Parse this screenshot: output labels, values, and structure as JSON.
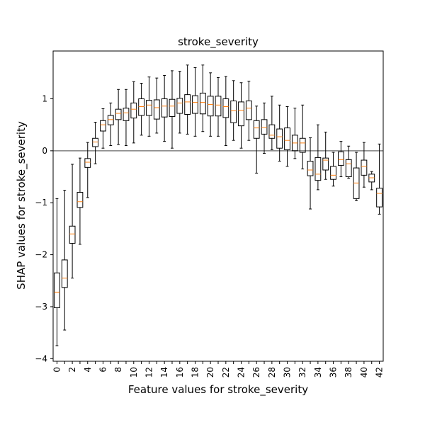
{
  "chart_data": {
    "type": "box",
    "title": "stroke_severity",
    "xlabel": "Feature values for stroke_severity",
    "ylabel": "SHAP values for stroke_severity",
    "ylim": [
      -4.05,
      1.92
    ],
    "yticks": [
      -4,
      -3,
      -2,
      -1,
      0,
      1
    ],
    "ytick_labels": [
      "−4",
      "−3",
      "−2",
      "−1",
      "0",
      "1"
    ],
    "xticks": [
      0,
      2,
      4,
      6,
      8,
      10,
      12,
      14,
      16,
      18,
      20,
      22,
      24,
      26,
      28,
      30,
      32,
      34,
      36,
      38,
      40,
      42
    ],
    "xtick_labels": [
      "0",
      "2",
      "4",
      "6",
      "8",
      "10",
      "12",
      "14",
      "16",
      "18",
      "20",
      "22",
      "24",
      "26",
      "28",
      "30",
      "32",
      "34",
      "36",
      "38",
      "40",
      "42"
    ],
    "reference_line_y": 0,
    "colors": {
      "box": "#000000",
      "median": "#ff7f0e",
      "reference_line": "#808080"
    },
    "series": [
      {
        "x": 0,
        "whisker_low": -3.75,
        "q1": -3.02,
        "median": -2.72,
        "q3": -2.35,
        "whisker_high": -0.92
      },
      {
        "x": 1,
        "whisker_low": -3.45,
        "q1": -2.63,
        "median": -2.45,
        "q3": -2.1,
        "whisker_high": -0.76
      },
      {
        "x": 2,
        "whisker_low": -2.45,
        "q1": -1.78,
        "median": -1.6,
        "q3": -1.45,
        "whisker_high": -0.26
      },
      {
        "x": 3,
        "whisker_low": -1.8,
        "q1": -1.09,
        "median": -0.98,
        "q3": -0.8,
        "whisker_high": -0.14
      },
      {
        "x": 4,
        "whisker_low": -0.9,
        "q1": -0.32,
        "median": -0.22,
        "q3": -0.15,
        "whisker_high": 0.16
      },
      {
        "x": 5,
        "whisker_low": -0.25,
        "q1": 0.08,
        "median": 0.17,
        "q3": 0.24,
        "whisker_high": 0.55
      },
      {
        "x": 6,
        "whisker_low": 0.05,
        "q1": 0.38,
        "median": 0.5,
        "q3": 0.58,
        "whisker_high": 0.81
      },
      {
        "x": 7,
        "whisker_low": 0.1,
        "q1": 0.5,
        "median": 0.6,
        "q3": 0.68,
        "whisker_high": 0.92
      },
      {
        "x": 8,
        "whisker_low": 0.12,
        "q1": 0.6,
        "median": 0.72,
        "q3": 0.8,
        "whisker_high": 1.18
      },
      {
        "x": 9,
        "whisker_low": 0.1,
        "q1": 0.58,
        "median": 0.73,
        "q3": 0.82,
        "whisker_high": 1.18
      },
      {
        "x": 10,
        "whisker_low": 0.15,
        "q1": 0.63,
        "median": 0.8,
        "q3": 0.92,
        "whisker_high": 1.33
      },
      {
        "x": 11,
        "whisker_low": 0.3,
        "q1": 0.68,
        "median": 0.85,
        "q3": 1.0,
        "whisker_high": 1.3
      },
      {
        "x": 12,
        "whisker_low": 0.28,
        "q1": 0.68,
        "median": 0.88,
        "q3": 0.97,
        "whisker_high": 1.42
      },
      {
        "x": 13,
        "whisker_low": 0.34,
        "q1": 0.61,
        "median": 0.83,
        "q3": 0.98,
        "whisker_high": 1.4
      },
      {
        "x": 14,
        "whisker_low": 0.18,
        "q1": 0.65,
        "median": 0.86,
        "q3": 1.0,
        "whisker_high": 1.45
      },
      {
        "x": 15,
        "whisker_low": 0.05,
        "q1": 0.66,
        "median": 0.86,
        "q3": 0.99,
        "whisker_high": 1.54
      },
      {
        "x": 16,
        "whisker_low": 0.34,
        "q1": 0.72,
        "median": 0.92,
        "q3": 1.01,
        "whisker_high": 1.53
      },
      {
        "x": 17,
        "whisker_low": 0.32,
        "q1": 0.7,
        "median": 0.94,
        "q3": 1.08,
        "whisker_high": 1.65
      },
      {
        "x": 18,
        "whisker_low": 0.28,
        "q1": 0.72,
        "median": 0.93,
        "q3": 1.06,
        "whisker_high": 1.6
      },
      {
        "x": 19,
        "whisker_low": 0.37,
        "q1": 0.71,
        "median": 0.93,
        "q3": 1.11,
        "whisker_high": 1.65
      },
      {
        "x": 20,
        "whisker_low": 0.28,
        "q1": 0.67,
        "median": 0.89,
        "q3": 1.05,
        "whisker_high": 1.5
      },
      {
        "x": 21,
        "whisker_low": 0.28,
        "q1": 0.67,
        "median": 0.88,
        "q3": 1.05,
        "whisker_high": 1.41
      },
      {
        "x": 22,
        "whisker_low": 0.1,
        "q1": 0.64,
        "median": 0.85,
        "q3": 1.0,
        "whisker_high": 1.43
      },
      {
        "x": 23,
        "whisker_low": 0.2,
        "q1": 0.54,
        "median": 0.77,
        "q3": 0.96,
        "whisker_high": 1.35
      },
      {
        "x": 24,
        "whisker_low": 0.05,
        "q1": 0.48,
        "median": 0.78,
        "q3": 0.94,
        "whisker_high": 1.31
      },
      {
        "x": 25,
        "whisker_low": 0.2,
        "q1": 0.6,
        "median": 0.82,
        "q3": 0.96,
        "whisker_high": 1.34
      },
      {
        "x": 26,
        "whisker_low": -0.43,
        "q1": 0.24,
        "median": 0.44,
        "q3": 0.58,
        "whisker_high": 0.86
      },
      {
        "x": 27,
        "whisker_low": -0.05,
        "q1": 0.32,
        "median": 0.45,
        "q3": 0.6,
        "whisker_high": 0.92
      },
      {
        "x": 28,
        "whisker_low": 0.02,
        "q1": 0.24,
        "median": 0.3,
        "q3": 0.5,
        "whisker_high": 1.05
      },
      {
        "x": 29,
        "whisker_low": -0.2,
        "q1": 0.05,
        "median": 0.27,
        "q3": 0.42,
        "whisker_high": 0.88
      },
      {
        "x": 30,
        "whisker_low": -0.3,
        "q1": 0.02,
        "median": 0.2,
        "q3": 0.44,
        "whisker_high": 0.85
      },
      {
        "x": 31,
        "whisker_low": -0.15,
        "q1": 0.0,
        "median": 0.15,
        "q3": 0.3,
        "whisker_high": 0.82
      },
      {
        "x": 32,
        "whisker_low": -0.35,
        "q1": -0.03,
        "median": 0.15,
        "q3": 0.24,
        "whisker_high": 0.88
      },
      {
        "x": 33,
        "whisker_low": -1.12,
        "q1": -0.48,
        "median": -0.37,
        "q3": -0.2,
        "whisker_high": 0.25
      },
      {
        "x": 34,
        "whisker_low": -0.75,
        "q1": -0.57,
        "median": -0.45,
        "q3": -0.13,
        "whisker_high": 0.5
      },
      {
        "x": 35,
        "whisker_low": -0.55,
        "q1": -0.37,
        "median": -0.18,
        "q3": -0.14,
        "whisker_high": 0.36
      },
      {
        "x": 36,
        "whisker_low": -0.68,
        "q1": -0.55,
        "median": -0.47,
        "q3": -0.3,
        "whisker_high": -0.03
      },
      {
        "x": 37,
        "whisker_low": -0.5,
        "q1": -0.28,
        "median": -0.17,
        "q3": -0.02,
        "whisker_high": 0.18
      },
      {
        "x": 38,
        "whisker_low": -0.53,
        "q1": -0.5,
        "median": -0.25,
        "q3": -0.17,
        "whisker_high": 0.09
      },
      {
        "x": 39,
        "whisker_low": -0.96,
        "q1": -0.92,
        "median": -0.62,
        "q3": -0.33,
        "whisker_high": -0.03
      },
      {
        "x": 40,
        "whisker_low": -0.7,
        "q1": -0.47,
        "median": -0.3,
        "q3": -0.18,
        "whisker_high": 0.16
      },
      {
        "x": 41,
        "whisker_low": -0.75,
        "q1": -0.6,
        "median": -0.52,
        "q3": -0.45,
        "whisker_high": -0.4
      },
      {
        "x": 42,
        "whisker_low": -1.22,
        "q1": -1.08,
        "median": -0.82,
        "q3": -0.72,
        "whisker_high": 0.13
      }
    ]
  }
}
